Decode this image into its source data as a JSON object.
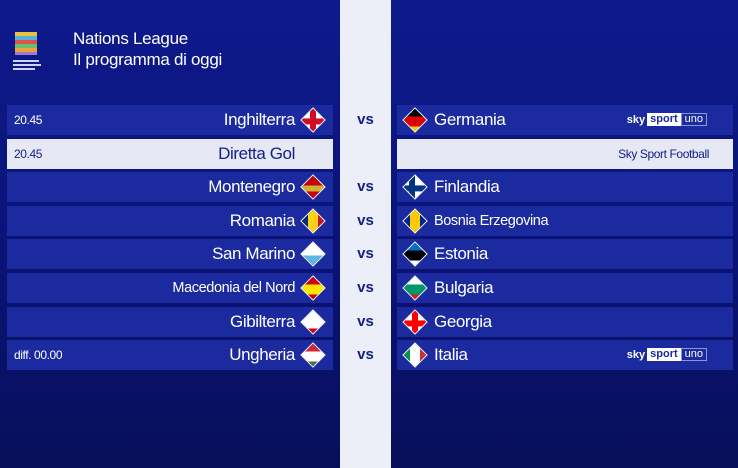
{
  "header": {
    "title": "Nations League",
    "subtitle": "Il programma di oggi",
    "logo_text": "UEFA NATIONS LEAGUE"
  },
  "vs_label": "vs",
  "broadcaster": {
    "sky": "sky",
    "sport": "sport",
    "uno": "uno"
  },
  "rows": [
    {
      "type": "match",
      "time": "20.45",
      "home": {
        "name": "Inghilterra",
        "flag": [
          "#ffffff"
        ],
        "cross": "#d00c27"
      },
      "away": {
        "name": "Germania",
        "flag": [
          "#000000",
          "#dd0000",
          "#ffce00"
        ]
      },
      "channel": "skysportuno"
    },
    {
      "type": "info",
      "time": "20.45",
      "label": "Diretta Gol",
      "channel_text": "Sky Sport Football"
    },
    {
      "type": "match",
      "home": {
        "name": "Montenegro",
        "flag": [
          "#c40308",
          "#c40308",
          "#d4af37",
          "#c40308",
          "#c40308"
        ]
      },
      "away": {
        "name": "Finlandia",
        "flag": [
          "#ffffff"
        ],
        "cross": "#003580"
      }
    },
    {
      "type": "match",
      "home": {
        "name": "Romania",
        "flag": [
          "#002b7f",
          "#fcd116",
          "#ce1126"
        ],
        "vertical": true
      },
      "away": {
        "name": "Bosnia Erzegovina",
        "flag": [
          "#002395",
          "#fecb00",
          "#002395"
        ],
        "vertical": true
      }
    },
    {
      "type": "match",
      "home": {
        "name": "San Marino",
        "flag": [
          "#ffffff",
          "#5eb6e4"
        ]
      },
      "away": {
        "name": "Estonia",
        "flag": [
          "#0072ce",
          "#000000",
          "#ffffff"
        ]
      }
    },
    {
      "type": "match",
      "home": {
        "name": "Macedonia del Nord",
        "flag": [
          "#d20000",
          "#ffe600",
          "#d20000"
        ]
      },
      "away": {
        "name": "Bulgaria",
        "flag": [
          "#ffffff",
          "#00966e",
          "#d62612"
        ]
      }
    },
    {
      "type": "match",
      "home": {
        "name": "Gibilterra",
        "flag": [
          "#ffffff",
          "#ffffff",
          "#da000c"
        ]
      },
      "away": {
        "name": "Georgia",
        "flag": [
          "#ffffff"
        ],
        "cross": "#ff0000"
      }
    },
    {
      "type": "match",
      "time": "diff. 00.00",
      "home": {
        "name": "Ungheria",
        "flag": [
          "#ce2939",
          "#ffffff",
          "#477050"
        ]
      },
      "away": {
        "name": "Italia",
        "flag": [
          "#009246",
          "#ffffff",
          "#ce2b37"
        ],
        "vertical": true
      },
      "channel": "skysportuno"
    }
  ]
}
